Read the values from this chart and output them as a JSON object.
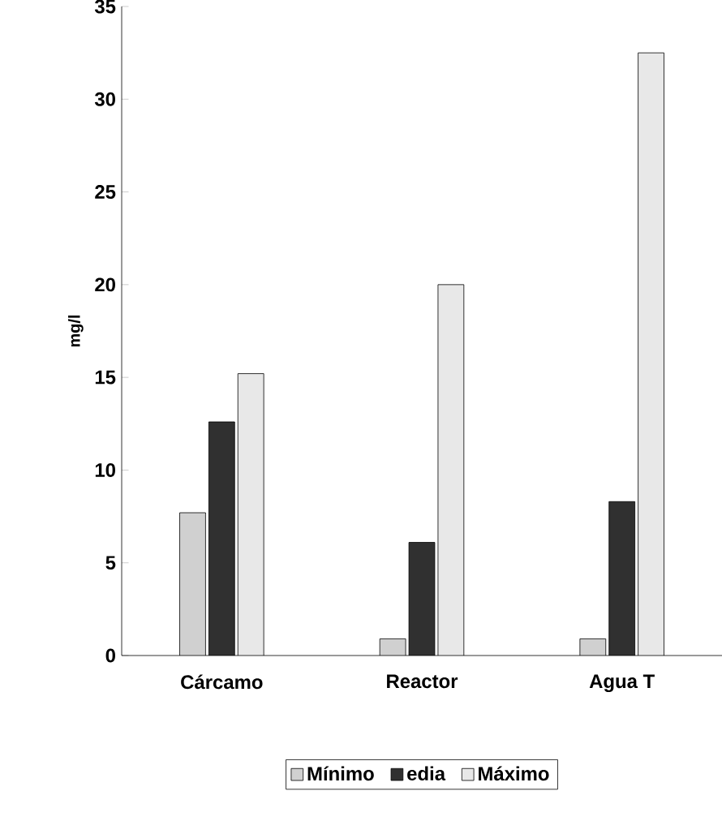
{
  "chart_data": {
    "type": "bar",
    "ylabel": "mg/l",
    "categories": [
      "Cárcamo",
      "Reactor",
      "Agua T"
    ],
    "series": [
      {
        "name": "Mínimo",
        "color": "#d0d0d0",
        "values": [
          7.7,
          0.9,
          0.9
        ]
      },
      {
        "name": "edia",
        "color": "#303030",
        "values": [
          12.6,
          6.1,
          8.3
        ]
      },
      {
        "name": "Máximo",
        "color": "#e8e8e8",
        "values": [
          15.2,
          20.0,
          32.5
        ]
      }
    ],
    "ylim": [
      0,
      35
    ],
    "yticks": [
      0,
      5,
      10,
      15,
      20,
      25,
      30,
      35
    ],
    "legend": "bottom"
  }
}
